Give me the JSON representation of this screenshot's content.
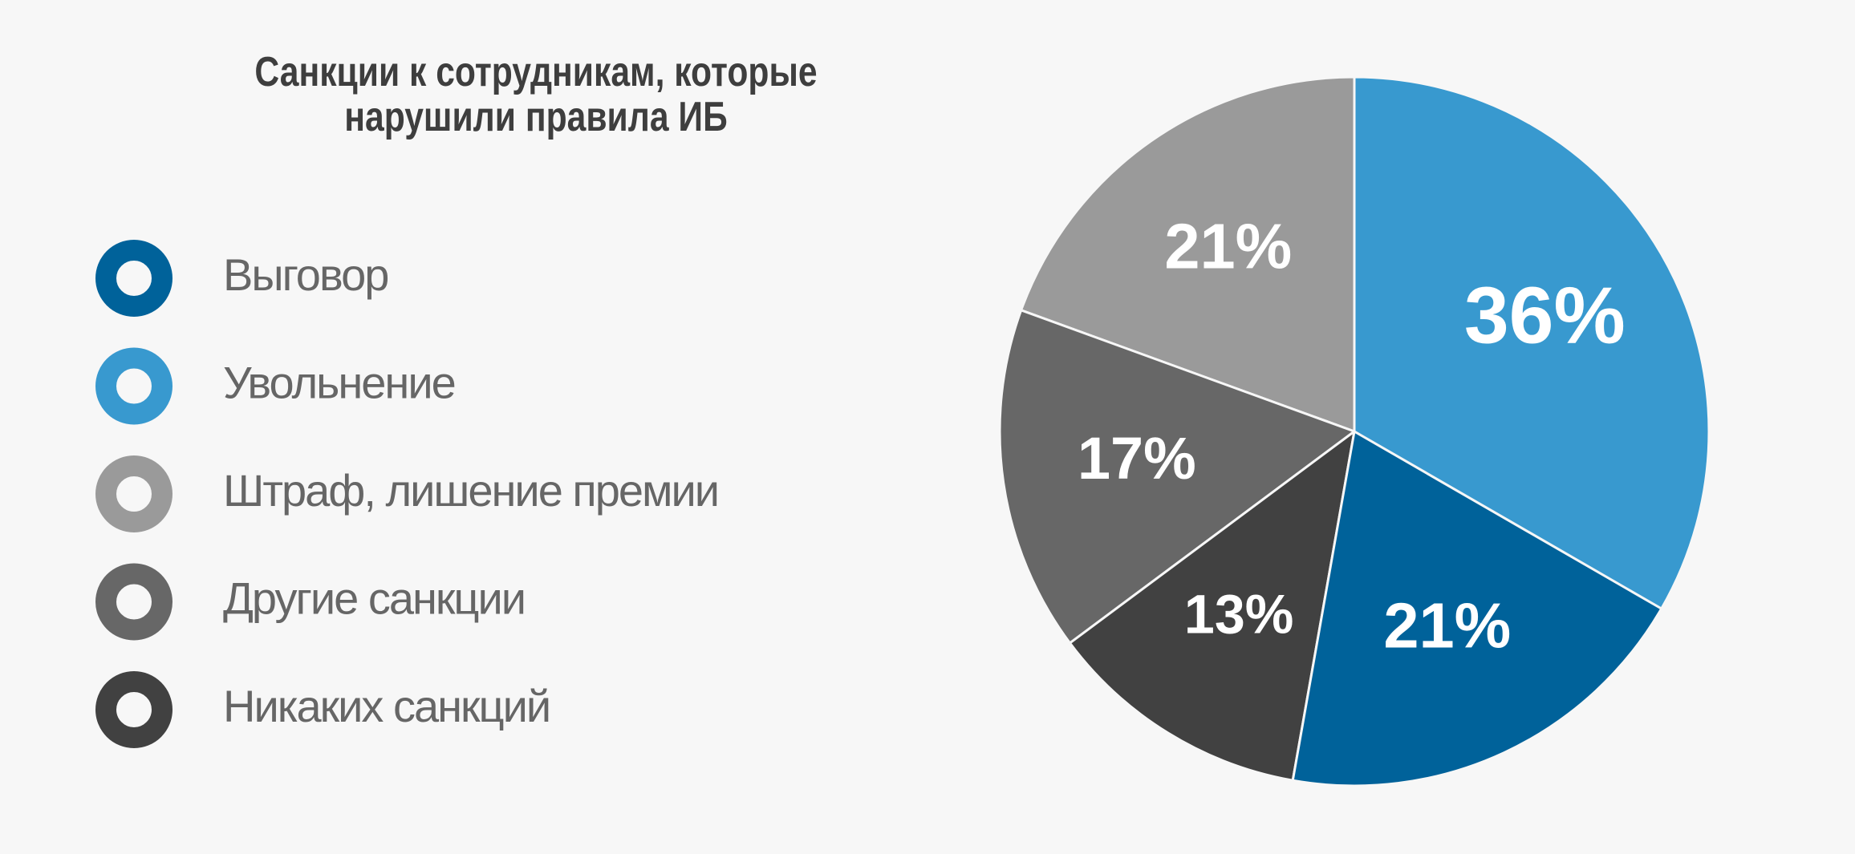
{
  "chart_data": {
    "type": "pie",
    "title": "Санкции к сотрудникам, которые нарушили правила ИБ",
    "categories": [
      "Выговор",
      "Увольнение",
      "Штраф, лишение премии",
      "Другие санкции",
      "Никаких санкций"
    ],
    "values": [
      21,
      36,
      21,
      17,
      13
    ],
    "value_labels": [
      "21%",
      "36%",
      "21%",
      "17%",
      "13%"
    ],
    "colors": [
      "#00629a",
      "#3899cf",
      "#9a9a9a",
      "#676767",
      "#414141"
    ]
  }
}
